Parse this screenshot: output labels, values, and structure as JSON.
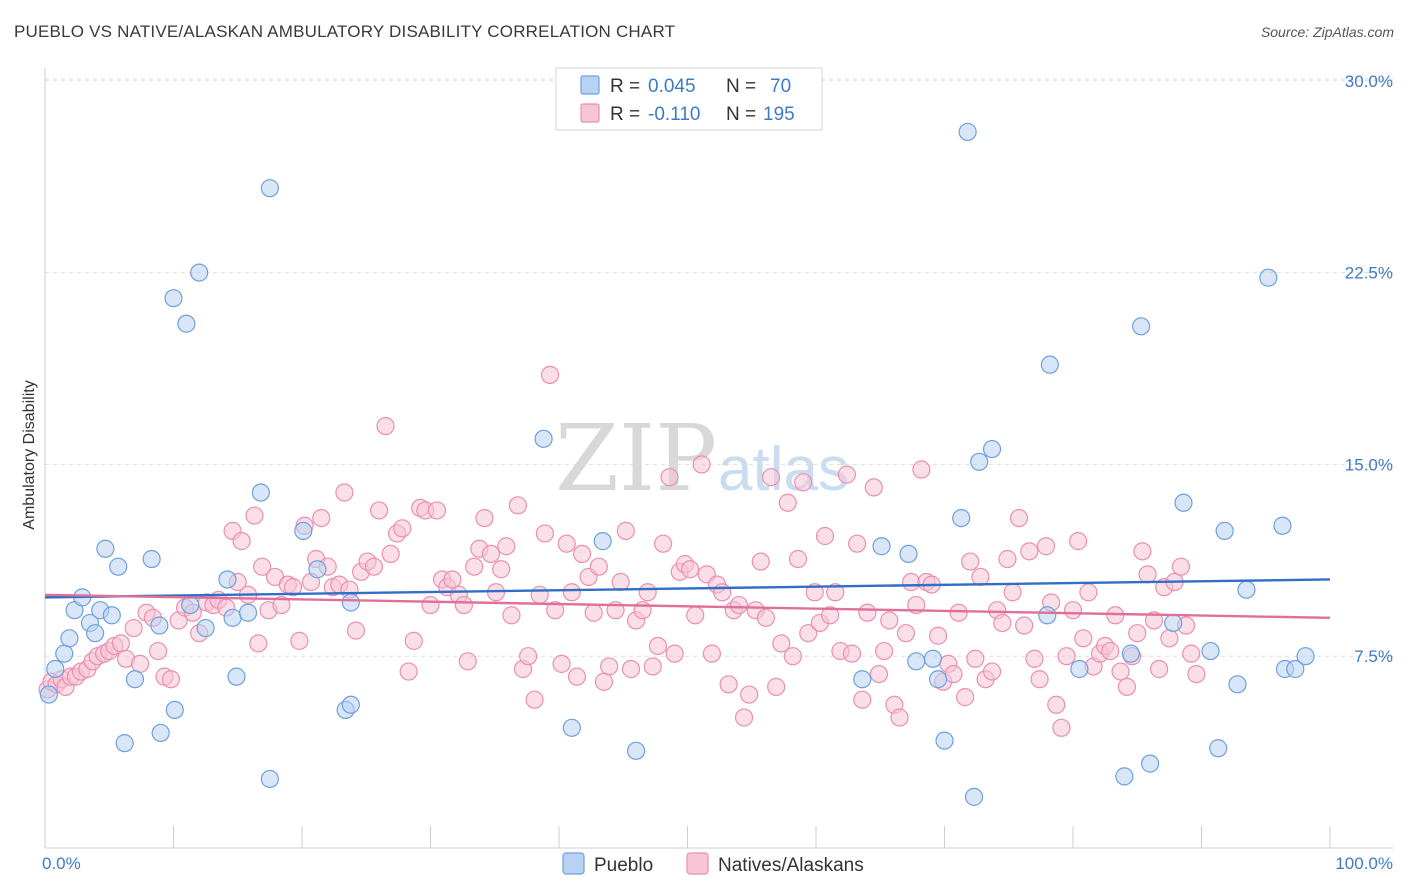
{
  "header": {
    "title": "PUEBLO VS NATIVE/ALASKAN AMBULATORY DISABILITY CORRELATION CHART",
    "source": "Source: ZipAtlas.com"
  },
  "watermark": {
    "zip": "ZIP",
    "atlas": "atlas"
  },
  "colors": {
    "pueblo_fill": "#b8d2f3",
    "pueblo_stroke": "#6fa0dd",
    "pueblo_line": "#2f6fc7",
    "natives_fill": "#f8c5d6",
    "natives_stroke": "#ea8fb0",
    "natives_line": "#e0709a",
    "axis_label": "#3f7bc4",
    "grid": "#dedede"
  },
  "legend": {
    "r_label": "R =",
    "n_label": "N =",
    "rows": [
      {
        "r": "0.045",
        "n": "70"
      },
      {
        "r": "-0.110",
        "n": "195"
      }
    ]
  },
  "bottom_legend": [
    "Pueblo",
    "Natives/Alaskans"
  ],
  "chart_data": {
    "type": "scatter",
    "title": "PUEBLO VS NATIVE/ALASKAN AMBULATORY DISABILITY CORRELATION CHART",
    "xlabel": "",
    "ylabel": "Ambulatory Disability",
    "xlim": [
      0,
      100
    ],
    "ylim": [
      0,
      30.5
    ],
    "x_tick_labels": [
      "0.0%",
      "100.0%"
    ],
    "y_ticks": [
      7.5,
      15.0,
      22.5,
      30.0
    ],
    "y_tick_labels": [
      "7.5%",
      "15.0%",
      "22.5%",
      "30.0%"
    ],
    "grid": "horizontal dashed",
    "legend_position": "top-center",
    "series": [
      {
        "name": "Pueblo",
        "R": 0.045,
        "N": 70,
        "trend": [
          [
            0,
            9.8
          ],
          [
            100,
            10.5
          ]
        ],
        "points": [
          [
            0.3,
            6.0
          ],
          [
            0.8,
            7.0
          ],
          [
            1.5,
            7.6
          ],
          [
            1.9,
            8.2
          ],
          [
            2.3,
            9.3
          ],
          [
            2.9,
            9.8
          ],
          [
            3.5,
            8.8
          ],
          [
            3.9,
            8.4
          ],
          [
            4.3,
            9.3
          ],
          [
            4.7,
            11.7
          ],
          [
            5.2,
            9.1
          ],
          [
            5.7,
            11.0
          ],
          [
            6.2,
            4.1
          ],
          [
            7.0,
            6.6
          ],
          [
            8.3,
            11.3
          ],
          [
            8.9,
            8.7
          ],
          [
            9.0,
            4.5
          ],
          [
            10.1,
            5.4
          ],
          [
            10.0,
            21.5
          ],
          [
            11.0,
            20.5
          ],
          [
            11.3,
            9.5
          ],
          [
            12.0,
            22.5
          ],
          [
            12.5,
            8.6
          ],
          [
            14.2,
            10.5
          ],
          [
            14.6,
            9.0
          ],
          [
            14.9,
            6.7
          ],
          [
            15.8,
            9.2
          ],
          [
            16.8,
            13.9
          ],
          [
            17.5,
            25.8
          ],
          [
            17.5,
            2.7
          ],
          [
            20.1,
            12.4
          ],
          [
            21.2,
            10.9
          ],
          [
            23.4,
            5.4
          ],
          [
            23.8,
            5.6
          ],
          [
            23.8,
            9.6
          ],
          [
            38.8,
            16.0
          ],
          [
            41.0,
            4.7
          ],
          [
            43.4,
            12.0
          ],
          [
            46.0,
            3.8
          ],
          [
            65.1,
            11.8
          ],
          [
            63.6,
            6.6
          ],
          [
            67.2,
            11.5
          ],
          [
            69.1,
            7.4
          ],
          [
            67.8,
            7.3
          ],
          [
            71.3,
            12.9
          ],
          [
            69.5,
            6.6
          ],
          [
            70.0,
            4.2
          ],
          [
            72.7,
            15.1
          ],
          [
            71.8,
            28.0
          ],
          [
            72.3,
            2.0
          ],
          [
            73.7,
            15.6
          ],
          [
            78.0,
            9.1
          ],
          [
            78.2,
            18.9
          ],
          [
            80.5,
            7.0
          ],
          [
            84.0,
            2.8
          ],
          [
            85.3,
            20.4
          ],
          [
            84.5,
            7.6
          ],
          [
            86.0,
            3.3
          ],
          [
            87.8,
            8.8
          ],
          [
            88.6,
            13.5
          ],
          [
            90.7,
            7.7
          ],
          [
            91.3,
            3.9
          ],
          [
            91.8,
            12.4
          ],
          [
            92.8,
            6.4
          ],
          [
            93.5,
            10.1
          ],
          [
            95.2,
            22.3
          ],
          [
            96.3,
            12.6
          ],
          [
            96.5,
            7.0
          ],
          [
            97.3,
            7.0
          ],
          [
            98.1,
            7.5
          ]
        ]
      },
      {
        "name": "Natives/Alaskans",
        "R": -0.11,
        "N": 195,
        "trend": [
          [
            0,
            9.9
          ],
          [
            100,
            9.0
          ]
        ],
        "points": [
          [
            0.2,
            6.2
          ],
          [
            0.5,
            6.5
          ],
          [
            0.9,
            6.4
          ],
          [
            1.3,
            6.6
          ],
          [
            1.6,
            6.3
          ],
          [
            2.0,
            6.7
          ],
          [
            2.4,
            6.7
          ],
          [
            2.8,
            6.9
          ],
          [
            3.3,
            7.0
          ],
          [
            3.7,
            7.3
          ],
          [
            4.1,
            7.5
          ],
          [
            4.6,
            7.6
          ],
          [
            5.0,
            7.7
          ],
          [
            5.4,
            7.9
          ],
          [
            5.9,
            8.0
          ],
          [
            6.3,
            7.4
          ],
          [
            6.9,
            8.6
          ],
          [
            7.4,
            7.2
          ],
          [
            7.9,
            9.2
          ],
          [
            8.4,
            9.0
          ],
          [
            8.8,
            7.7
          ],
          [
            9.3,
            6.7
          ],
          [
            9.8,
            6.6
          ],
          [
            10.4,
            8.9
          ],
          [
            10.9,
            9.4
          ],
          [
            11.5,
            9.2
          ],
          [
            12.0,
            8.4
          ],
          [
            12.6,
            9.6
          ],
          [
            13.1,
            9.5
          ],
          [
            13.5,
            9.7
          ],
          [
            14.1,
            9.4
          ],
          [
            14.6,
            12.4
          ],
          [
            15.0,
            10.4
          ],
          [
            15.3,
            12.0
          ],
          [
            15.8,
            9.9
          ],
          [
            16.3,
            13.0
          ],
          [
            16.6,
            8.0
          ],
          [
            16.9,
            11.0
          ],
          [
            17.4,
            9.3
          ],
          [
            17.9,
            10.6
          ],
          [
            18.4,
            9.5
          ],
          [
            18.9,
            10.3
          ],
          [
            19.3,
            10.2
          ],
          [
            19.8,
            8.1
          ],
          [
            20.2,
            12.6
          ],
          [
            20.7,
            10.4
          ],
          [
            21.1,
            11.3
          ],
          [
            21.5,
            12.9
          ],
          [
            22.0,
            11.0
          ],
          [
            22.4,
            10.2
          ],
          [
            22.9,
            10.3
          ],
          [
            23.3,
            13.9
          ],
          [
            23.7,
            10.1
          ],
          [
            24.2,
            8.5
          ],
          [
            24.6,
            10.8
          ],
          [
            25.1,
            11.2
          ],
          [
            25.6,
            11.0
          ],
          [
            26.0,
            13.2
          ],
          [
            26.5,
            16.5
          ],
          [
            26.9,
            11.5
          ],
          [
            27.4,
            12.3
          ],
          [
            27.8,
            12.5
          ],
          [
            28.3,
            6.9
          ],
          [
            28.7,
            8.1
          ],
          [
            29.2,
            13.3
          ],
          [
            29.6,
            13.2
          ],
          [
            30.0,
            9.5
          ],
          [
            30.5,
            13.2
          ],
          [
            30.9,
            10.5
          ],
          [
            31.3,
            10.2
          ],
          [
            31.7,
            10.5
          ],
          [
            32.2,
            9.9
          ],
          [
            32.6,
            9.5
          ],
          [
            32.9,
            7.3
          ],
          [
            33.4,
            11.0
          ],
          [
            33.8,
            11.7
          ],
          [
            34.2,
            12.9
          ],
          [
            34.7,
            11.5
          ],
          [
            35.1,
            10.0
          ],
          [
            35.5,
            10.9
          ],
          [
            35.9,
            11.8
          ],
          [
            36.3,
            9.1
          ],
          [
            36.8,
            13.4
          ],
          [
            37.2,
            7.0
          ],
          [
            37.6,
            7.5
          ],
          [
            38.1,
            5.8
          ],
          [
            38.5,
            9.9
          ],
          [
            38.9,
            12.3
          ],
          [
            39.3,
            18.5
          ],
          [
            39.7,
            9.3
          ],
          [
            40.2,
            7.2
          ],
          [
            40.6,
            11.9
          ],
          [
            41.0,
            10.0
          ],
          [
            41.4,
            6.7
          ],
          [
            41.8,
            11.5
          ],
          [
            42.3,
            10.6
          ],
          [
            42.7,
            9.2
          ],
          [
            43.1,
            11.0
          ],
          [
            43.5,
            6.5
          ],
          [
            43.9,
            7.1
          ],
          [
            44.4,
            9.3
          ],
          [
            44.8,
            10.4
          ],
          [
            45.2,
            12.4
          ],
          [
            45.6,
            7.0
          ],
          [
            46.0,
            8.9
          ],
          [
            46.5,
            9.3
          ],
          [
            46.9,
            10.0
          ],
          [
            47.3,
            7.1
          ],
          [
            47.7,
            7.9
          ],
          [
            48.1,
            11.9
          ],
          [
            48.6,
            14.5
          ],
          [
            49.0,
            7.6
          ],
          [
            49.4,
            10.8
          ],
          [
            49.8,
            11.1
          ],
          [
            50.2,
            10.9
          ],
          [
            50.6,
            9.1
          ],
          [
            51.1,
            15.0
          ],
          [
            51.5,
            10.7
          ],
          [
            51.9,
            7.6
          ],
          [
            52.3,
            10.3
          ],
          [
            52.7,
            10.0
          ],
          [
            53.2,
            6.4
          ],
          [
            53.6,
            9.3
          ],
          [
            54.0,
            9.5
          ],
          [
            54.4,
            5.1
          ],
          [
            54.8,
            6.0
          ],
          [
            55.3,
            9.3
          ],
          [
            55.7,
            11.2
          ],
          [
            56.1,
            9.0
          ],
          [
            56.5,
            14.5
          ],
          [
            56.9,
            6.3
          ],
          [
            57.3,
            8.0
          ],
          [
            57.8,
            13.5
          ],
          [
            58.2,
            7.5
          ],
          [
            58.6,
            11.3
          ],
          [
            59.0,
            14.3
          ],
          [
            59.4,
            8.4
          ],
          [
            59.9,
            10.0
          ],
          [
            60.3,
            8.8
          ],
          [
            60.7,
            12.2
          ],
          [
            61.1,
            9.1
          ],
          [
            61.5,
            10.0
          ],
          [
            61.9,
            7.7
          ],
          [
            62.4,
            14.6
          ],
          [
            62.8,
            7.6
          ],
          [
            63.2,
            11.9
          ],
          [
            63.6,
            5.8
          ],
          [
            64.0,
            9.2
          ],
          [
            64.5,
            14.1
          ],
          [
            64.9,
            6.8
          ],
          [
            65.3,
            7.7
          ],
          [
            65.7,
            8.9
          ],
          [
            66.1,
            5.6
          ],
          [
            66.5,
            5.1
          ],
          [
            67.0,
            8.4
          ],
          [
            67.4,
            10.4
          ],
          [
            67.8,
            9.5
          ],
          [
            68.2,
            14.8
          ],
          [
            68.6,
            10.4
          ],
          [
            69.0,
            10.3
          ],
          [
            69.5,
            8.3
          ],
          [
            69.9,
            6.5
          ],
          [
            70.3,
            7.2
          ],
          [
            70.7,
            6.8
          ],
          [
            71.1,
            9.2
          ],
          [
            71.6,
            5.9
          ],
          [
            72.0,
            11.2
          ],
          [
            72.4,
            7.4
          ],
          [
            72.8,
            10.6
          ],
          [
            73.2,
            6.6
          ],
          [
            73.7,
            6.9
          ],
          [
            74.1,
            9.3
          ],
          [
            74.5,
            8.8
          ],
          [
            74.9,
            11.3
          ],
          [
            75.3,
            10.0
          ],
          [
            75.8,
            12.9
          ],
          [
            76.2,
            8.7
          ],
          [
            76.6,
            11.6
          ],
          [
            77.0,
            7.4
          ],
          [
            77.4,
            6.6
          ],
          [
            77.9,
            11.8
          ],
          [
            78.3,
            9.6
          ],
          [
            78.7,
            5.6
          ],
          [
            79.1,
            4.7
          ],
          [
            79.5,
            7.5
          ],
          [
            80.0,
            9.3
          ],
          [
            80.4,
            12.0
          ],
          [
            80.8,
            8.2
          ],
          [
            81.2,
            10.0
          ],
          [
            81.6,
            7.1
          ],
          [
            82.1,
            7.6
          ],
          [
            82.5,
            7.9
          ],
          [
            82.9,
            7.7
          ],
          [
            83.3,
            9.1
          ],
          [
            83.7,
            6.9
          ],
          [
            84.2,
            6.3
          ],
          [
            84.6,
            7.5
          ],
          [
            85.0,
            8.4
          ],
          [
            85.4,
            11.6
          ],
          [
            85.8,
            10.7
          ],
          [
            86.3,
            8.9
          ],
          [
            86.7,
            7.0
          ],
          [
            87.1,
            10.2
          ],
          [
            87.5,
            8.2
          ],
          [
            87.9,
            10.4
          ],
          [
            88.4,
            11.0
          ],
          [
            88.8,
            8.7
          ],
          [
            89.2,
            7.6
          ],
          [
            89.6,
            6.8
          ]
        ]
      }
    ]
  }
}
